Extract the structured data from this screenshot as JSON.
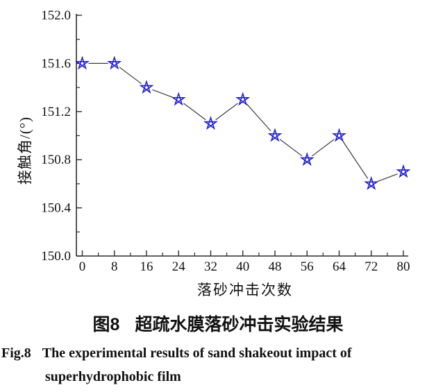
{
  "figure": {
    "ylabel": "接触角/(°)",
    "xlabel": "落砂冲击次数",
    "caption_zh": {
      "prefix": "图8",
      "text": "超疏水膜落砂冲击实验结果"
    },
    "caption_en": {
      "prefix": "Fig.8",
      "line1": "The experimental results of sand shakeout impact of",
      "line2": "superhydrophobic film"
    }
  },
  "chart_data": {
    "type": "line",
    "title": "",
    "xlabel": "落砂冲击次数",
    "ylabel": "接触角/(°)",
    "x": [
      0,
      8,
      16,
      24,
      32,
      40,
      48,
      56,
      64,
      72,
      80
    ],
    "values": [
      151.6,
      151.6,
      151.4,
      151.3,
      151.1,
      151.3,
      151.0,
      150.8,
      151.0,
      150.6,
      150.7
    ],
    "xlim": [
      -1.5,
      81.2
    ],
    "ylim": [
      150.0,
      152.0
    ],
    "xticks": [
      0,
      8,
      16,
      24,
      32,
      40,
      48,
      56,
      64,
      72,
      80
    ],
    "yticks": [
      150.0,
      150.4,
      150.8,
      151.2,
      151.6,
      152.0
    ],
    "ytick_labels": [
      "150.0",
      "150.4",
      "150.8",
      "151.2",
      "151.6",
      "152.0"
    ],
    "x_minor_step": 4,
    "y_minor_step": 0.2,
    "grid": false,
    "legend": "none",
    "marker": "open-star",
    "marker_color": "#2121cd",
    "line_color": "#3a3a3a",
    "axis_color": "#2b2b2b",
    "tick_direction": "in"
  }
}
